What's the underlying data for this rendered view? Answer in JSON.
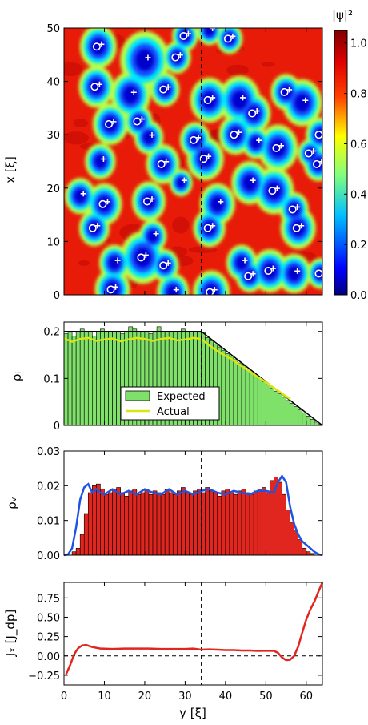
{
  "chart_data": [
    {
      "type": "heatmap",
      "panel": "psi",
      "ylabel": "x [ξ]",
      "xlim": [
        0,
        64
      ],
      "ylim": [
        0,
        50
      ],
      "yticks": [
        "0",
        "10",
        "20",
        "30",
        "40",
        "50"
      ],
      "colorbar": {
        "label": "|ψ|²",
        "range": [
          0,
          1.05
        ],
        "ticks": [
          "0.0",
          "0.2",
          "0.4",
          "0.6",
          "0.8",
          "1.0"
        ],
        "tick_values": [
          0,
          0.2,
          0.4,
          0.6,
          0.8,
          1.0
        ],
        "colors": [
          "#00007f",
          "#0000ff",
          "#00bfff",
          "#7fff7f",
          "#ffff00",
          "#ff4000",
          "#e00000",
          "#7f0000"
        ]
      },
      "dashed_line_y": 34,
      "vortex_markers": "white circles and crosses at density minima",
      "holes": [
        [
          8.5,
          46.5,
          2.4
        ],
        [
          20,
          44,
          3.2
        ],
        [
          28,
          44.5,
          1.8
        ],
        [
          8,
          39,
          2.3
        ],
        [
          16.5,
          37.5,
          2.6
        ],
        [
          25,
          38.5,
          1.9
        ],
        [
          36,
          36.5,
          2.5
        ],
        [
          43.5,
          36.5,
          2.7
        ],
        [
          47,
          34,
          2.2
        ],
        [
          55,
          38,
          2
        ],
        [
          59,
          36,
          2.6
        ],
        [
          11.5,
          32,
          2.3
        ],
        [
          18.5,
          32.5,
          1.8
        ],
        [
          21,
          29.5,
          1.9
        ],
        [
          32.5,
          29,
          2
        ],
        [
          42.5,
          30,
          2.2
        ],
        [
          47.5,
          28.5,
          1.8
        ],
        [
          53,
          27.5,
          2.6
        ],
        [
          63.5,
          30,
          1.9
        ],
        [
          9,
          25,
          2
        ],
        [
          24.5,
          24.5,
          2.2
        ],
        [
          35,
          25.5,
          2.4
        ],
        [
          46,
          21,
          2.4
        ],
        [
          52,
          19.5,
          2.6
        ],
        [
          63,
          24.5,
          1.9
        ],
        [
          4,
          18.5,
          2
        ],
        [
          10,
          17,
          2.3
        ],
        [
          21,
          17.5,
          2.2
        ],
        [
          38,
          17,
          2.3
        ],
        [
          57,
          16,
          1.9
        ],
        [
          7.5,
          12.5,
          2
        ],
        [
          22,
          11,
          1.8
        ],
        [
          36,
          12.5,
          2.1
        ],
        [
          58,
          12.5,
          2.3
        ],
        [
          12.5,
          6,
          2
        ],
        [
          19.5,
          7,
          2.9
        ],
        [
          25,
          5.5,
          1.8
        ],
        [
          44,
          6,
          2
        ],
        [
          51,
          4.5,
          2.4
        ],
        [
          46,
          3.5,
          1.8
        ],
        [
          57,
          4,
          2.2
        ],
        [
          63.5,
          4,
          1.7
        ],
        [
          12,
          1,
          2.3
        ],
        [
          27,
          0.5,
          2.1
        ],
        [
          36.5,
          0.5,
          2.4
        ],
        [
          30,
          48.5,
          1.7
        ],
        [
          36,
          49.5,
          1.6
        ],
        [
          41,
          48,
          1.7
        ],
        [
          61,
          26.5,
          1.6
        ],
        [
          29,
          21,
          1.5
        ]
      ]
    },
    {
      "type": "bar",
      "panel": "rho_i",
      "ylabel": "ρᵢ",
      "xlim": [
        0,
        64
      ],
      "ylim": [
        0,
        0.22
      ],
      "yticks": [
        "0",
        "0.1",
        "0.2"
      ],
      "tick_values": [
        0,
        0.1,
        0.2
      ],
      "legend": {
        "placement": "lower-center",
        "entries": [
          "Expected",
          "Actual"
        ]
      },
      "bar_color": "#7fe06a",
      "actual_color": "#d9e60f",
      "expected_profile": [
        [
          0,
          0.2
        ],
        [
          34,
          0.2
        ],
        [
          64,
          0
        ]
      ],
      "bars_expected": [
        0.195,
        0.2,
        0.19,
        0.2,
        0.205,
        0.2,
        0.2,
        0.19,
        0.2,
        0.205,
        0.2,
        0.2,
        0.2,
        0.2,
        0.195,
        0.2,
        0.21,
        0.205,
        0.2,
        0.2,
        0.2,
        0.195,
        0.2,
        0.21,
        0.2,
        0.2,
        0.2,
        0.2,
        0.2,
        0.205,
        0.2,
        0.2,
        0.2,
        0.2,
        0.198,
        0.187,
        0.18,
        0.173,
        0.167,
        0.16,
        0.153,
        0.147,
        0.14,
        0.133,
        0.127,
        0.12,
        0.113,
        0.107,
        0.1,
        0.093,
        0.087,
        0.08,
        0.073,
        0.067,
        0.06,
        0.053,
        0.047,
        0.04,
        0.033,
        0.027,
        0.02,
        0.013,
        0.007,
        0.002
      ],
      "actual_curve": [
        [
          0,
          0.185
        ],
        [
          2,
          0.178
        ],
        [
          4,
          0.184
        ],
        [
          6,
          0.186
        ],
        [
          8,
          0.18
        ],
        [
          10,
          0.183
        ],
        [
          12,
          0.185
        ],
        [
          14,
          0.179
        ],
        [
          16,
          0.183
        ],
        [
          18,
          0.186
        ],
        [
          20,
          0.184
        ],
        [
          22,
          0.18
        ],
        [
          24,
          0.184
        ],
        [
          26,
          0.186
        ],
        [
          28,
          0.181
        ],
        [
          30,
          0.183
        ],
        [
          32,
          0.186
        ],
        [
          34,
          0.184
        ],
        [
          36,
          0.17
        ],
        [
          38,
          0.158
        ],
        [
          40,
          0.148
        ],
        [
          42,
          0.138
        ],
        [
          44,
          0.126
        ],
        [
          46,
          0.115
        ],
        [
          48,
          0.103
        ],
        [
          50,
          0.092
        ],
        [
          52,
          0.08
        ],
        [
          54,
          0.068
        ],
        [
          56,
          0.056
        ]
      ],
      "dashed_line_y": 34
    },
    {
      "type": "bar",
      "panel": "rho_v",
      "ylabel": "ρᵥ",
      "xlim": [
        0,
        64
      ],
      "ylim": [
        0,
        0.03
      ],
      "yticks": [
        "0.00",
        "0.01",
        "0.02",
        "0.03"
      ],
      "tick_values": [
        0,
        0.01,
        0.02,
        0.03
      ],
      "bar_color": "#e0261e",
      "curve_color": "#2054e0",
      "bars": [
        0,
        0,
        0.001,
        0.002,
        0.006,
        0.012,
        0.018,
        0.02,
        0.0205,
        0.019,
        0.0175,
        0.018,
        0.019,
        0.0195,
        0.018,
        0.017,
        0.0185,
        0.019,
        0.0175,
        0.018,
        0.019,
        0.0175,
        0.0185,
        0.018,
        0.0175,
        0.019,
        0.018,
        0.0175,
        0.0185,
        0.0195,
        0.018,
        0.0175,
        0.0185,
        0.019,
        0.018,
        0.0195,
        0.0185,
        0.018,
        0.017,
        0.0185,
        0.019,
        0.018,
        0.0175,
        0.0185,
        0.019,
        0.018,
        0.0175,
        0.0185,
        0.019,
        0.0195,
        0.018,
        0.0215,
        0.0225,
        0.021,
        0.0175,
        0.013,
        0.0095,
        0.007,
        0.0045,
        0.002,
        0.001,
        0.0005,
        0,
        0
      ],
      "curve": [
        [
          0,
          0
        ],
        [
          1,
          0.0002
        ],
        [
          2,
          0.002
        ],
        [
          3,
          0.008
        ],
        [
          4,
          0.016
        ],
        [
          5,
          0.0195
        ],
        [
          6,
          0.0205
        ],
        [
          7,
          0.018
        ],
        [
          8,
          0.019
        ],
        [
          9,
          0.018
        ],
        [
          10,
          0.0175
        ],
        [
          12,
          0.019
        ],
        [
          14,
          0.0175
        ],
        [
          16,
          0.0185
        ],
        [
          18,
          0.0175
        ],
        [
          20,
          0.019
        ],
        [
          22,
          0.018
        ],
        [
          24,
          0.0175
        ],
        [
          26,
          0.019
        ],
        [
          28,
          0.0175
        ],
        [
          30,
          0.0185
        ],
        [
          32,
          0.0175
        ],
        [
          34,
          0.0185
        ],
        [
          36,
          0.019
        ],
        [
          38,
          0.018
        ],
        [
          40,
          0.0175
        ],
        [
          42,
          0.0185
        ],
        [
          44,
          0.018
        ],
        [
          46,
          0.0175
        ],
        [
          48,
          0.0185
        ],
        [
          50,
          0.0185
        ],
        [
          52,
          0.018
        ],
        [
          53,
          0.021
        ],
        [
          54,
          0.0228
        ],
        [
          55,
          0.021
        ],
        [
          56,
          0.014
        ],
        [
          57,
          0.009
        ],
        [
          58,
          0.006
        ],
        [
          59,
          0.004
        ],
        [
          60,
          0.003
        ],
        [
          61,
          0.002
        ],
        [
          62,
          0.001
        ],
        [
          63,
          0.0003
        ],
        [
          64,
          0
        ]
      ],
      "dashed_line_y": 34
    },
    {
      "type": "line",
      "panel": "J_x",
      "ylabel": "Jₓ [J_dp]",
      "xlabel": "y [ξ]",
      "xlim": [
        0,
        64
      ],
      "ylim": [
        -0.375,
        0.95
      ],
      "yticks": [
        "−0.25",
        "0.00",
        "0.25",
        "0.50",
        "0.75"
      ],
      "tick_values": [
        -0.25,
        0,
        0.25,
        0.5,
        0.75
      ],
      "xticks": [
        "0",
        "10",
        "20",
        "30",
        "40",
        "50",
        "60"
      ],
      "xtick_values": [
        0,
        10,
        20,
        30,
        40,
        50,
        60
      ],
      "line_color": "#e0261e",
      "curve": [
        [
          0.5,
          -0.24
        ],
        [
          1.5,
          -0.12
        ],
        [
          2.5,
          0.02
        ],
        [
          3.5,
          0.1
        ],
        [
          4.5,
          0.135
        ],
        [
          5.5,
          0.14
        ],
        [
          7,
          0.115
        ],
        [
          9,
          0.095
        ],
        [
          12,
          0.09
        ],
        [
          15,
          0.095
        ],
        [
          18,
          0.095
        ],
        [
          21,
          0.095
        ],
        [
          24,
          0.09
        ],
        [
          27,
          0.09
        ],
        [
          30,
          0.09
        ],
        [
          32,
          0.095
        ],
        [
          34,
          0.08
        ],
        [
          36,
          0.085
        ],
        [
          38,
          0.08
        ],
        [
          40,
          0.075
        ],
        [
          42,
          0.075
        ],
        [
          44,
          0.07
        ],
        [
          46,
          0.07
        ],
        [
          48,
          0.065
        ],
        [
          50,
          0.068
        ],
        [
          52,
          0.065
        ],
        [
          53,
          0.04
        ],
        [
          54,
          -0.02
        ],
        [
          55,
          -0.055
        ],
        [
          56,
          -0.05
        ],
        [
          57,
          0.0
        ],
        [
          58,
          0.12
        ],
        [
          59,
          0.3
        ],
        [
          60,
          0.47
        ],
        [
          61,
          0.6
        ],
        [
          62,
          0.7
        ],
        [
          63,
          0.83
        ],
        [
          64,
          0.95
        ]
      ],
      "zero_dashed": true,
      "dashed_line_y": 34
    }
  ]
}
